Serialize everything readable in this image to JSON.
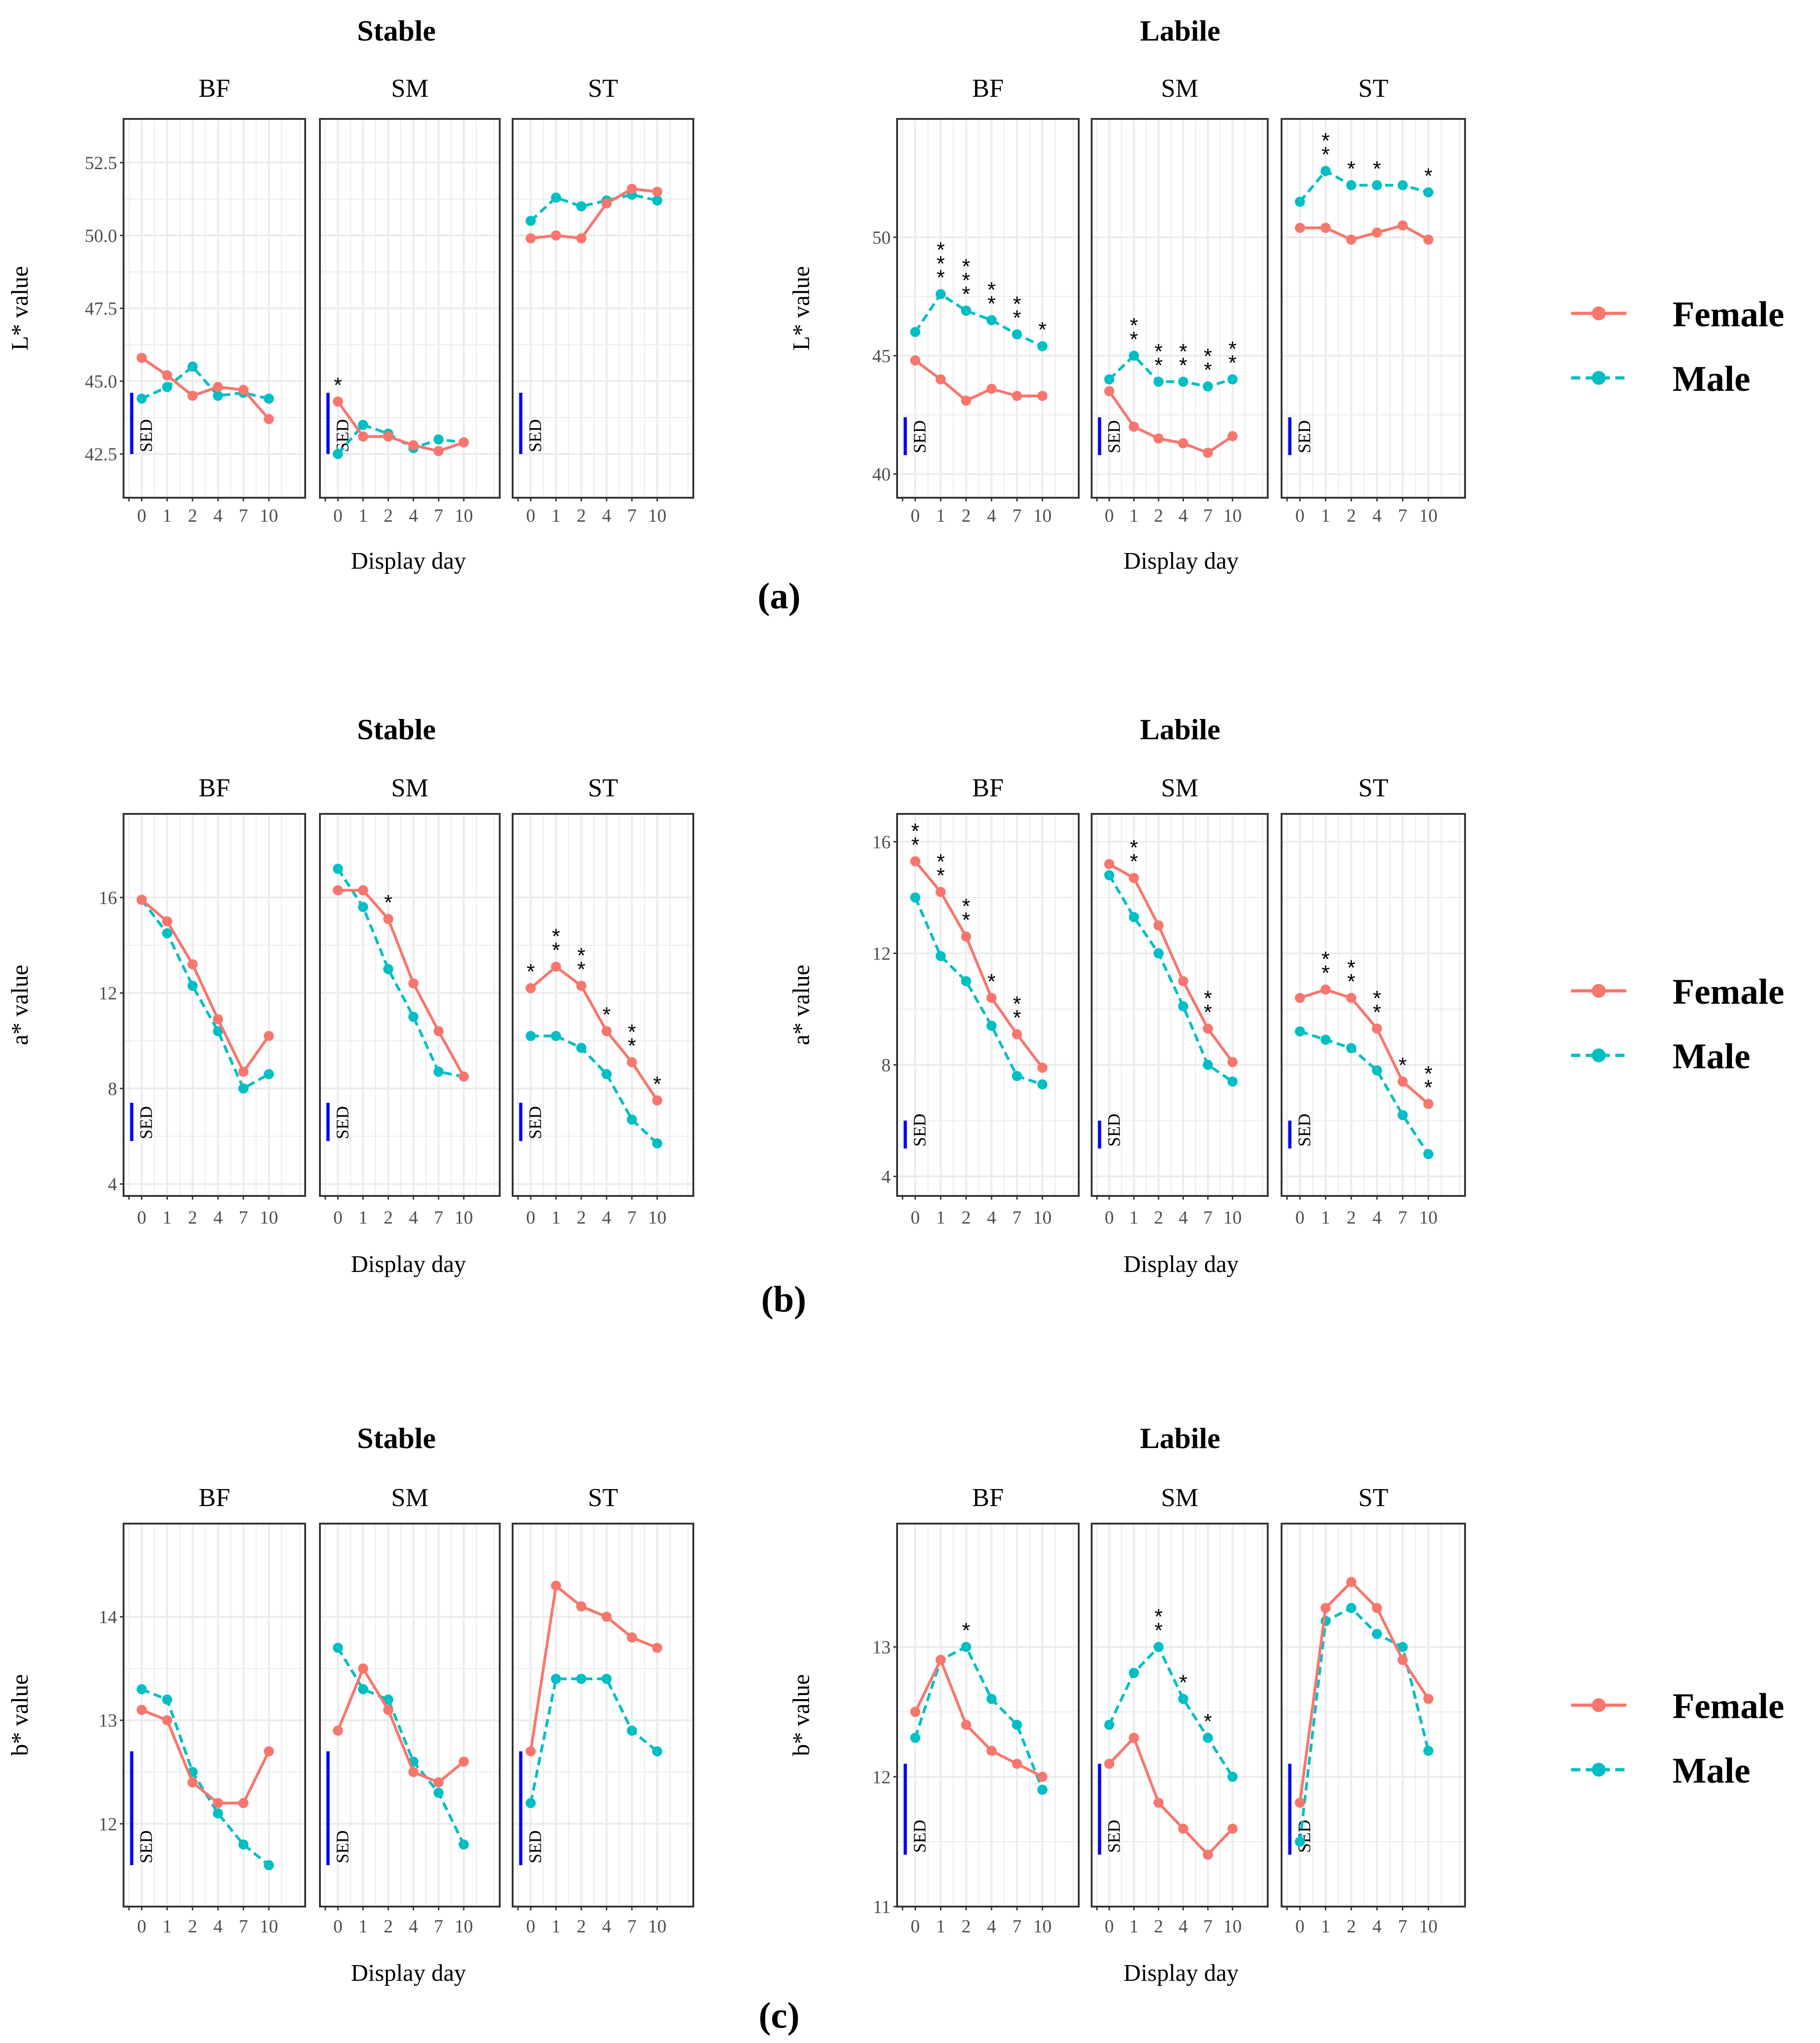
{
  "x_axis_label": "Display day",
  "sed_label": "SED",
  "legend": {
    "female": "Female",
    "male": "Male"
  },
  "colors": {
    "female": "#f8766d",
    "male": "#00bfc4",
    "sed": "#0000ee",
    "grid": "#ebebeb",
    "frame": "#333333"
  },
  "panel_labels": [
    "(a)",
    "(b)",
    "(c)"
  ],
  "chart_data": [
    {
      "type": "line",
      "panel": "(a)",
      "group": "Stable",
      "title": "Stable",
      "ylabel": "L* value",
      "xcategories": [
        "0",
        "1",
        "2",
        "4",
        "7",
        "10"
      ],
      "ylim": [
        41.0,
        54.0
      ],
      "yticks": [
        42.5,
        45.0,
        47.5,
        50.0,
        52.5
      ],
      "ytick_labels": [
        "42.5",
        "45.0",
        "47.5",
        "50.0",
        "52.5"
      ],
      "sed": [
        42.5,
        44.6
      ],
      "facets": [
        {
          "name": "BF",
          "female": [
            45.8,
            45.2,
            44.5,
            44.8,
            44.7,
            43.7
          ],
          "male": [
            44.4,
            44.8,
            45.5,
            44.5,
            44.6,
            44.4
          ],
          "stars": []
        },
        {
          "name": "SM",
          "female": [
            44.3,
            43.1,
            43.1,
            42.8,
            42.6,
            42.9
          ],
          "male": [
            42.5,
            43.5,
            43.2,
            42.7,
            43.0,
            42.9
          ],
          "stars": [
            {
              "x": 0,
              "label": "*"
            }
          ]
        },
        {
          "name": "ST",
          "female": [
            49.9,
            50.0,
            49.9,
            51.1,
            51.6,
            51.5
          ],
          "male": [
            50.5,
            51.3,
            51.0,
            51.2,
            51.4,
            51.2
          ],
          "stars": []
        }
      ]
    },
    {
      "type": "line",
      "panel": "(a)",
      "group": "Labile",
      "title": "Labile",
      "ylabel": "L* value",
      "xcategories": [
        "0",
        "1",
        "2",
        "4",
        "7",
        "10"
      ],
      "ylim": [
        39.0,
        55.0
      ],
      "yticks": [
        40,
        45,
        50
      ],
      "ytick_labels": [
        "40",
        "45",
        "50"
      ],
      "sed": [
        40.8,
        42.4
      ],
      "facets": [
        {
          "name": "BF",
          "female": [
            44.8,
            44.0,
            43.1,
            43.6,
            43.3,
            43.3
          ],
          "male": [
            46.0,
            47.6,
            46.9,
            46.5,
            45.9,
            45.4
          ],
          "stars": [
            {
              "x": 1,
              "label": "***"
            },
            {
              "x": 2,
              "label": "***"
            },
            {
              "x": 3,
              "label": "**"
            },
            {
              "x": 4,
              "label": "**"
            },
            {
              "x": 5,
              "label": "*"
            }
          ]
        },
        {
          "name": "SM",
          "female": [
            43.5,
            42.0,
            41.5,
            41.3,
            40.9,
            41.6
          ],
          "male": [
            44.0,
            45.0,
            43.9,
            43.9,
            43.7,
            44.0
          ],
          "stars": [
            {
              "x": 1,
              "label": "**"
            },
            {
              "x": 2,
              "label": "**"
            },
            {
              "x": 3,
              "label": "**"
            },
            {
              "x": 4,
              "label": "**"
            },
            {
              "x": 5,
              "label": "**"
            }
          ]
        },
        {
          "name": "ST",
          "female": [
            50.4,
            50.4,
            49.9,
            50.2,
            50.5,
            49.9
          ],
          "male": [
            51.5,
            52.8,
            52.2,
            52.2,
            52.2,
            51.9
          ],
          "stars": [
            {
              "x": 1,
              "label": "**"
            },
            {
              "x": 2,
              "label": "*"
            },
            {
              "x": 3,
              "label": "*"
            },
            {
              "x": 5,
              "label": "*"
            }
          ]
        }
      ]
    },
    {
      "type": "line",
      "panel": "(b)",
      "group": "Stable",
      "title": "Stable",
      "ylabel": "a* value",
      "xcategories": [
        "0",
        "1",
        "2",
        "4",
        "7",
        "10"
      ],
      "ylim": [
        3.5,
        19.5
      ],
      "yticks": [
        4,
        8,
        12,
        16
      ],
      "ytick_labels": [
        "4",
        "8",
        "12",
        "16"
      ],
      "sed": [
        5.8,
        7.4
      ],
      "facets": [
        {
          "name": "BF",
          "female": [
            15.9,
            15.0,
            13.2,
            10.9,
            8.7,
            10.2
          ],
          "male": [
            15.9,
            14.5,
            12.3,
            10.4,
            8.0,
            8.6
          ],
          "stars": []
        },
        {
          "name": "SM",
          "female": [
            16.3,
            16.3,
            15.1,
            12.4,
            10.4,
            8.5
          ],
          "male": [
            17.2,
            15.6,
            13.0,
            11.0,
            8.7,
            8.5
          ],
          "stars": [
            {
              "x": 2,
              "label": "*"
            }
          ]
        },
        {
          "name": "ST",
          "female": [
            12.2,
            13.1,
            12.3,
            10.4,
            9.1,
            7.5
          ],
          "male": [
            10.2,
            10.2,
            9.7,
            8.6,
            6.7,
            5.7
          ],
          "stars": [
            {
              "x": 0,
              "label": "*"
            },
            {
              "x": 1,
              "label": "**"
            },
            {
              "x": 2,
              "label": "**"
            },
            {
              "x": 3,
              "label": "*"
            },
            {
              "x": 4,
              "label": "**"
            },
            {
              "x": 5,
              "label": "*"
            }
          ]
        }
      ]
    },
    {
      "type": "line",
      "panel": "(b)",
      "group": "Labile",
      "title": "Labile",
      "ylabel": "a* value",
      "xcategories": [
        "0",
        "1",
        "2",
        "4",
        "7",
        "10"
      ],
      "ylim": [
        3.3,
        17.0
      ],
      "yticks": [
        4,
        8,
        12,
        16
      ],
      "ytick_labels": [
        "4",
        "8",
        "12",
        "16"
      ],
      "sed": [
        5.0,
        6.0
      ],
      "facets": [
        {
          "name": "BF",
          "female": [
            15.3,
            14.2,
            12.6,
            10.4,
            9.1,
            7.9
          ],
          "male": [
            14.0,
            11.9,
            11.0,
            9.4,
            7.6,
            7.3
          ],
          "stars": [
            {
              "x": 0,
              "label": "**"
            },
            {
              "x": 1,
              "label": "**"
            },
            {
              "x": 2,
              "label": "**"
            },
            {
              "x": 3,
              "label": "*"
            },
            {
              "x": 4,
              "label": "**"
            }
          ]
        },
        {
          "name": "SM",
          "female": [
            15.2,
            14.7,
            13.0,
            11.0,
            9.3,
            8.1
          ],
          "male": [
            14.8,
            13.3,
            12.0,
            10.1,
            8.0,
            7.4
          ],
          "stars": [
            {
              "x": 1,
              "label": "**"
            },
            {
              "x": 4,
              "label": "**"
            }
          ]
        },
        {
          "name": "ST",
          "female": [
            10.4,
            10.7,
            10.4,
            9.3,
            7.4,
            6.6
          ],
          "male": [
            9.2,
            8.9,
            8.6,
            7.8,
            6.2,
            4.8
          ],
          "stars": [
            {
              "x": 1,
              "label": "**"
            },
            {
              "x": 2,
              "label": "**"
            },
            {
              "x": 3,
              "label": "**"
            },
            {
              "x": 4,
              "label": "*"
            },
            {
              "x": 5,
              "label": "**"
            }
          ]
        }
      ]
    },
    {
      "type": "line",
      "panel": "(c)",
      "group": "Stable",
      "title": "Stable",
      "ylabel": "b* value",
      "xcategories": [
        "0",
        "1",
        "2",
        "4",
        "7",
        "10"
      ],
      "ylim": [
        11.2,
        14.9
      ],
      "yticks": [
        12,
        13,
        14
      ],
      "ytick_labels": [
        "12",
        "13",
        "14"
      ],
      "sed": [
        11.6,
        12.7
      ],
      "facets": [
        {
          "name": "BF",
          "female": [
            13.1,
            13.0,
            12.4,
            12.2,
            12.2,
            12.7
          ],
          "male": [
            13.3,
            13.2,
            12.5,
            12.1,
            11.8,
            11.6
          ],
          "stars": []
        },
        {
          "name": "SM",
          "female": [
            12.9,
            13.5,
            13.1,
            12.5,
            12.4,
            12.6
          ],
          "male": [
            13.7,
            13.3,
            13.2,
            12.6,
            12.3,
            11.8
          ],
          "stars": []
        },
        {
          "name": "ST",
          "female": [
            12.7,
            14.3,
            14.1,
            14.0,
            13.8,
            13.7
          ],
          "male": [
            12.2,
            13.4,
            13.4,
            13.4,
            12.9,
            12.7
          ],
          "stars": []
        }
      ]
    },
    {
      "type": "line",
      "panel": "(c)",
      "group": "Labile",
      "title": "Labile",
      "ylabel": "b* value",
      "xcategories": [
        "0",
        "1",
        "2",
        "4",
        "7",
        "10"
      ],
      "ylim": [
        11.0,
        13.95
      ],
      "yticks": [
        11,
        12,
        13
      ],
      "ytick_labels": [
        "11",
        "12",
        "13"
      ],
      "sed": [
        11.4,
        12.1
      ],
      "facets": [
        {
          "name": "BF",
          "female": [
            12.5,
            12.9,
            12.4,
            12.2,
            12.1,
            12.0
          ],
          "male": [
            12.3,
            12.9,
            13.0,
            12.6,
            12.4,
            11.9
          ],
          "stars": [
            {
              "x": 2,
              "label": "*"
            }
          ]
        },
        {
          "name": "SM",
          "female": [
            12.1,
            12.3,
            11.8,
            11.6,
            11.4,
            11.6
          ],
          "male": [
            12.4,
            12.8,
            13.0,
            12.6,
            12.3,
            12.0
          ],
          "stars": [
            {
              "x": 2,
              "label": "**"
            },
            {
              "x": 3,
              "label": "*"
            },
            {
              "x": 4,
              "label": "*"
            }
          ]
        },
        {
          "name": "ST",
          "female": [
            11.8,
            13.3,
            13.5,
            13.3,
            12.9,
            12.6
          ],
          "male": [
            11.5,
            13.2,
            13.3,
            13.1,
            13.0,
            12.2
          ],
          "stars": []
        }
      ]
    }
  ]
}
